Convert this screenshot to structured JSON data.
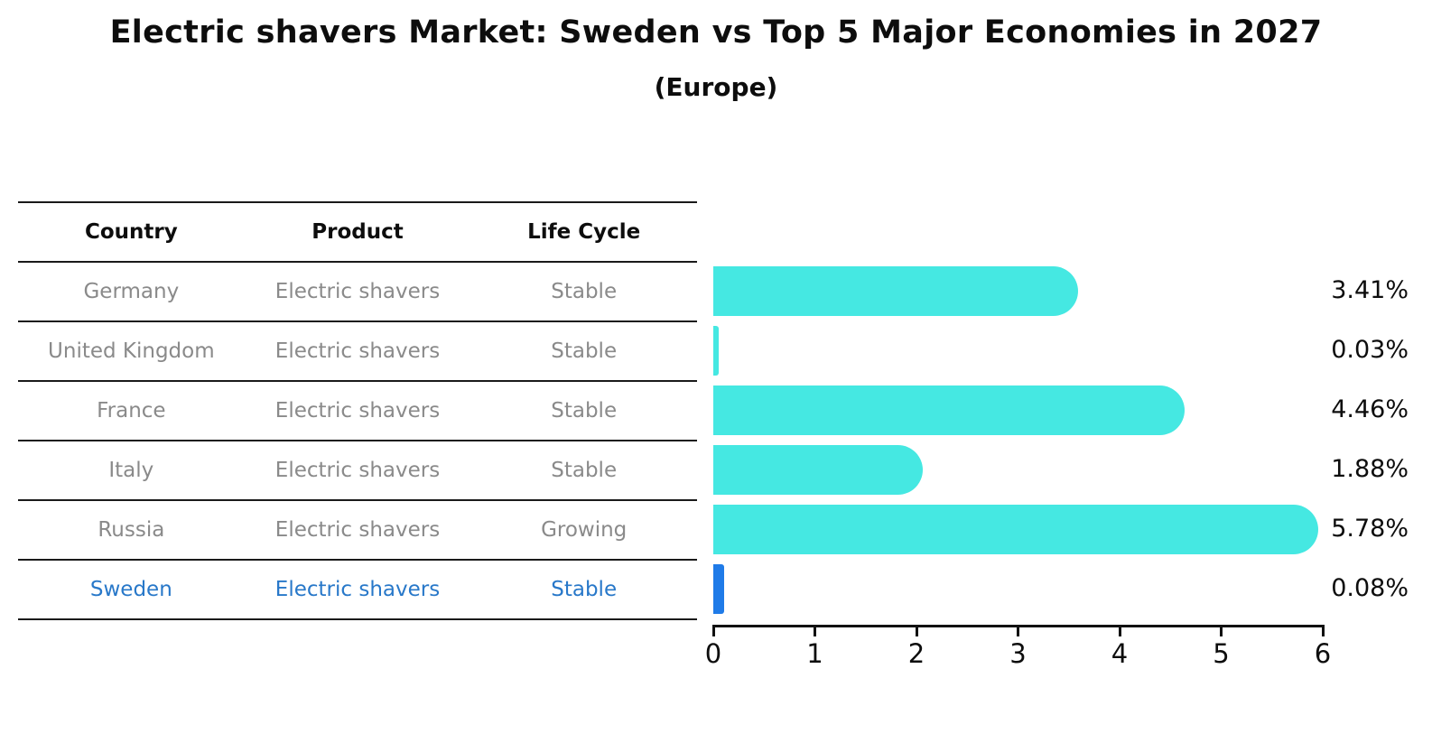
{
  "title": "Electric shavers Market: Sweden vs Top 5 Major Economies in 2027",
  "subtitle": "(Europe)",
  "table": {
    "headers": [
      "Country",
      "Product",
      "Life Cycle"
    ],
    "rows": [
      {
        "country": "Germany",
        "product": "Electric shavers",
        "life_cycle": "Stable",
        "highlight": false
      },
      {
        "country": "United Kingdom",
        "product": "Electric shavers",
        "life_cycle": "Stable",
        "highlight": false
      },
      {
        "country": "France",
        "product": "Electric shavers",
        "life_cycle": "Stable",
        "highlight": false
      },
      {
        "country": "Italy",
        "product": "Electric shavers",
        "life_cycle": "Stable",
        "highlight": false
      },
      {
        "country": "Russia",
        "product": "Electric shavers",
        "life_cycle": "Growing",
        "highlight": false
      },
      {
        "country": "Sweden",
        "product": "Electric shavers",
        "life_cycle": "Stable",
        "highlight": true
      }
    ]
  },
  "chart_data": {
    "type": "bar",
    "orientation": "horizontal",
    "title": "Electric shavers Market: Sweden vs Top 5 Major Economies in 2027",
    "subtitle": "(Europe)",
    "categories": [
      "Germany",
      "United Kingdom",
      "France",
      "Italy",
      "Russia",
      "Sweden"
    ],
    "values": [
      3.41,
      0.03,
      4.46,
      1.88,
      5.78,
      0.08
    ],
    "value_labels": [
      "3.41%",
      "0.03%",
      "4.46%",
      "1.88%",
      "5.78%",
      "0.08%"
    ],
    "xlim": [
      0,
      6
    ],
    "x_ticks": [
      0,
      1,
      2,
      3,
      4,
      5,
      6
    ],
    "x_tick_labels": [
      "0",
      "1",
      "2",
      "3",
      "4",
      "5",
      "6"
    ],
    "grid": false,
    "legend": "none",
    "bar_color": "#45e8e2",
    "highlight_index": 5,
    "highlight_bar_color": "#1f7be8"
  },
  "colors": {
    "background": "#ffffff",
    "bar": "#45e8e2",
    "highlight_bar": "#1f7be8",
    "highlight_text": "#2878c9",
    "table_text": "#8a8a8a",
    "heading_text": "#0d0d0d",
    "line": "#1a1a1a"
  }
}
